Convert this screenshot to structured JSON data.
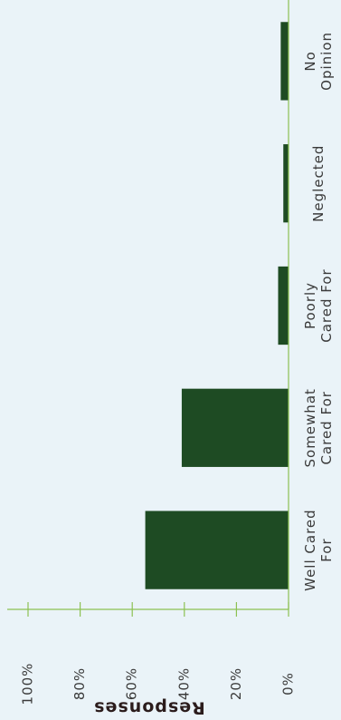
{
  "chart_data": {
    "type": "bar",
    "y_label": "Responses",
    "categories": [
      [
        "Well Cared",
        "For"
      ],
      [
        "Somewhat",
        "Cared For"
      ],
      [
        "Poorly",
        "Cared For"
      ],
      [
        "Neglected"
      ],
      [
        "No",
        "Opinion"
      ]
    ],
    "values": [
      55,
      41,
      4,
      2,
      3
    ],
    "color": "#1e4b23",
    "ylim": [
      0,
      100
    ],
    "yticks": [
      {
        "value": 0,
        "label": "0%"
      },
      {
        "value": 20,
        "label": "20%"
      },
      {
        "value": 40,
        "label": "40%"
      },
      {
        "value": 60,
        "label": "60%"
      },
      {
        "value": 80,
        "label": "80%"
      },
      {
        "value": 100,
        "label": "100%"
      }
    ],
    "grid": false
  }
}
